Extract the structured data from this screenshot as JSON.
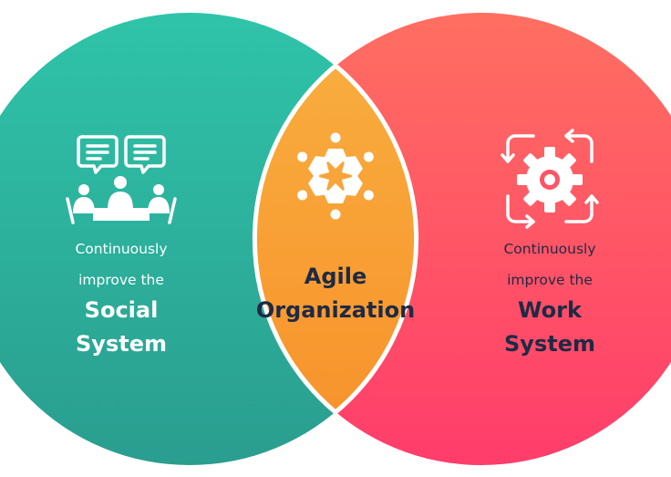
{
  "diagram": {
    "left": {
      "line1": "Continuously",
      "line2": "improve the",
      "line3": "Social",
      "line4": "System",
      "icon": "meeting-people-speech-bubbles-icon",
      "color_top": "#2fc4a9",
      "color_bottom": "#2a9d8f"
    },
    "right": {
      "line1": "Continuously",
      "line2": "improve the",
      "line3": "Work",
      "line4": "System",
      "icon": "gear-cycle-arrows-icon",
      "color_top": "#ff6f61",
      "color_bottom": "#ff3d6b"
    },
    "center": {
      "line1": "Agile",
      "line2": "Organization",
      "icon": "people-circle-icon",
      "color_top": "#f9b040",
      "color_bottom": "#f7902a"
    },
    "text_dark": "#1f2a44"
  }
}
